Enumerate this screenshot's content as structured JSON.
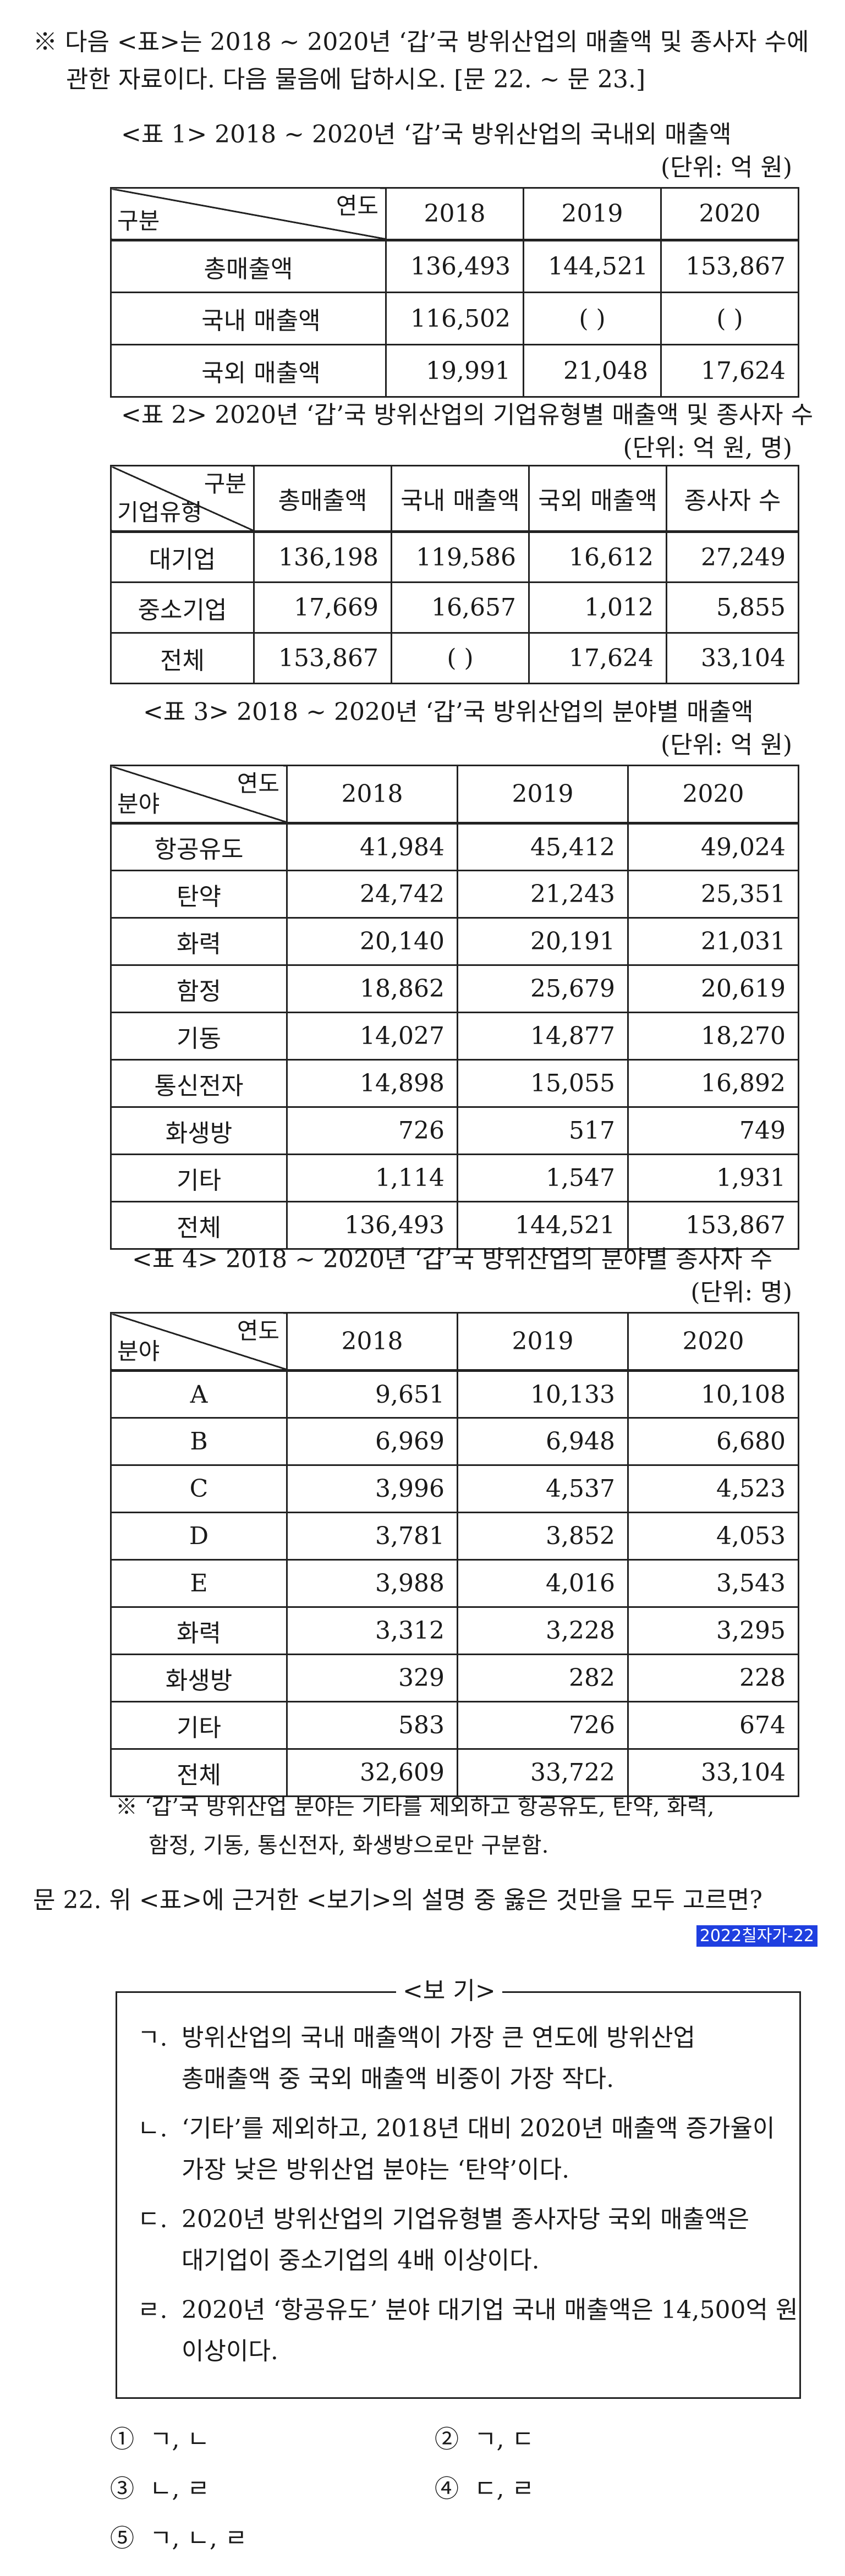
{
  "intro": {
    "line1": "※ 다음 <표>는 2018 ~ 2020년 ‘갑’국 방위산업의 매출액 및 종사자 수에",
    "line2": "관한 자료이다. 다음 물음에 답하시오. [문 22. ~ 문 23.]"
  },
  "table1": {
    "title": "<표 1> 2018 ~ 2020년 ‘갑’국 방위산업의 국내외 매출액",
    "unit": "(단위: 억 원)",
    "corner_top": "연도",
    "corner_bottom": "구분",
    "years": [
      "2018",
      "2019",
      "2020"
    ],
    "rows": [
      {
        "label": "총매출액",
        "values": [
          "136,493",
          "144,521",
          "153,867"
        ]
      },
      {
        "label": "국내 매출액",
        "values": [
          "116,502",
          "(      )",
          "(      )"
        ]
      },
      {
        "label": "국외 매출액",
        "values": [
          "19,991",
          "21,048",
          "17,624"
        ]
      }
    ]
  },
  "table2": {
    "title": "<표 2> 2020년 ‘갑’국 방위산업의 기업유형별 매출액 및 종사자 수",
    "unit": "(단위: 억 원, 명)",
    "corner_top": "구분",
    "corner_bottom": "기업유형",
    "headers": [
      "총매출액",
      "국내 매출액",
      "국외 매출액",
      "종사자 수"
    ],
    "rows": [
      {
        "label": "대기업",
        "values": [
          "136,198",
          "119,586",
          "16,612",
          "27,249"
        ]
      },
      {
        "label": "중소기업",
        "values": [
          "17,669",
          "16,657",
          "1,012",
          "5,855"
        ]
      },
      {
        "label": "전체",
        "values": [
          "153,867",
          "(      )",
          "17,624",
          "33,104"
        ]
      }
    ]
  },
  "table3": {
    "title": "<표 3> 2018 ~ 2020년 ‘갑’국 방위산업의 분야별 매출액",
    "unit": "(단위: 억 원)",
    "corner_top": "연도",
    "corner_bottom": "분야",
    "years": [
      "2018",
      "2019",
      "2020"
    ],
    "rows": [
      {
        "label": "항공유도",
        "values": [
          "41,984",
          "45,412",
          "49,024"
        ]
      },
      {
        "label": "탄약",
        "values": [
          "24,742",
          "21,243",
          "25,351"
        ]
      },
      {
        "label": "화력",
        "values": [
          "20,140",
          "20,191",
          "21,031"
        ]
      },
      {
        "label": "함정",
        "values": [
          "18,862",
          "25,679",
          "20,619"
        ]
      },
      {
        "label": "기동",
        "values": [
          "14,027",
          "14,877",
          "18,270"
        ]
      },
      {
        "label": "통신전자",
        "values": [
          "14,898",
          "15,055",
          "16,892"
        ]
      },
      {
        "label": "화생방",
        "values": [
          "726",
          "517",
          "749"
        ]
      },
      {
        "label": "기타",
        "values": [
          "1,114",
          "1,547",
          "1,931"
        ]
      },
      {
        "label": "전체",
        "values": [
          "136,493",
          "144,521",
          "153,867"
        ]
      }
    ]
  },
  "table4": {
    "title": "<표 4> 2018 ~ 2020년 ‘갑’국 방위산업의 분야별 종사자 수",
    "unit": "(단위: 명)",
    "corner_top": "연도",
    "corner_bottom": "분야",
    "years": [
      "2018",
      "2019",
      "2020"
    ],
    "rows": [
      {
        "label": "A",
        "values": [
          "9,651",
          "10,133",
          "10,108"
        ]
      },
      {
        "label": "B",
        "values": [
          "6,969",
          "6,948",
          "6,680"
        ]
      },
      {
        "label": "C",
        "values": [
          "3,996",
          "4,537",
          "4,523"
        ]
      },
      {
        "label": "D",
        "values": [
          "3,781",
          "3,852",
          "4,053"
        ]
      },
      {
        "label": "E",
        "values": [
          "3,988",
          "4,016",
          "3,543"
        ]
      },
      {
        "label": "화력",
        "values": [
          "3,312",
          "3,228",
          "3,295"
        ]
      },
      {
        "label": "화생방",
        "values": [
          "329",
          "282",
          "228"
        ]
      },
      {
        "label": "기타",
        "values": [
          "583",
          "726",
          "674"
        ]
      },
      {
        "label": "전체",
        "values": [
          "32,609",
          "33,722",
          "33,104"
        ]
      }
    ],
    "note1": "※ ‘갑’국 방위산업 분야는 기타를 제외하고 항공유도, 탄약, 화력,",
    "note2": "함정, 기동, 통신전자, 화생방으로만 구분함."
  },
  "question": {
    "text": "문 22. 위 <표>에 근거한 <보기>의 설명 중 옳은 것만을 모두 고르면?",
    "tag": "2022칠자가-22"
  },
  "bogi": {
    "title": "<보  기>",
    "items": [
      {
        "marker": "ㄱ.",
        "line1": "방위산업의 국내 매출액이 가장 큰 연도에 방위산업",
        "line2": "총매출액 중 국외 매출액 비중이 가장 작다."
      },
      {
        "marker": "ㄴ.",
        "line1": "‘기타’를 제외하고, 2018년 대비 2020년 매출액 증가율이",
        "line2": "가장 낮은 방위산업 분야는 ‘탄약’이다."
      },
      {
        "marker": "ㄷ.",
        "line1": "2020년 방위산업의 기업유형별 종사자당 국외 매출액은",
        "line2": "대기업이 중소기업의 4배 이상이다."
      },
      {
        "marker": "ㄹ.",
        "line1": "2020년 ‘항공유도’ 분야 대기업 국내 매출액은 14,500억 원",
        "line2": "이상이다."
      }
    ]
  },
  "choices": [
    {
      "num": "①",
      "text": "ㄱ, ㄴ"
    },
    {
      "num": "②",
      "text": "ㄱ, ㄷ"
    },
    {
      "num": "③",
      "text": "ㄴ, ㄹ"
    },
    {
      "num": "④",
      "text": "ㄷ, ㄹ"
    },
    {
      "num": "⑤",
      "text": "ㄱ, ㄴ, ㄹ"
    }
  ]
}
